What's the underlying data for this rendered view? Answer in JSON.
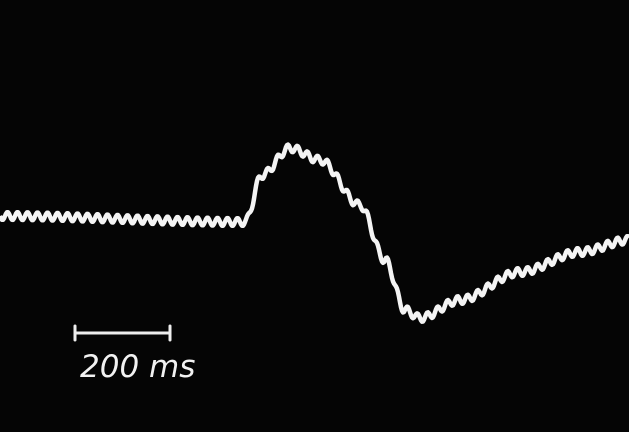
{
  "scale_bar": {
    "label": "200 ms"
  }
}
